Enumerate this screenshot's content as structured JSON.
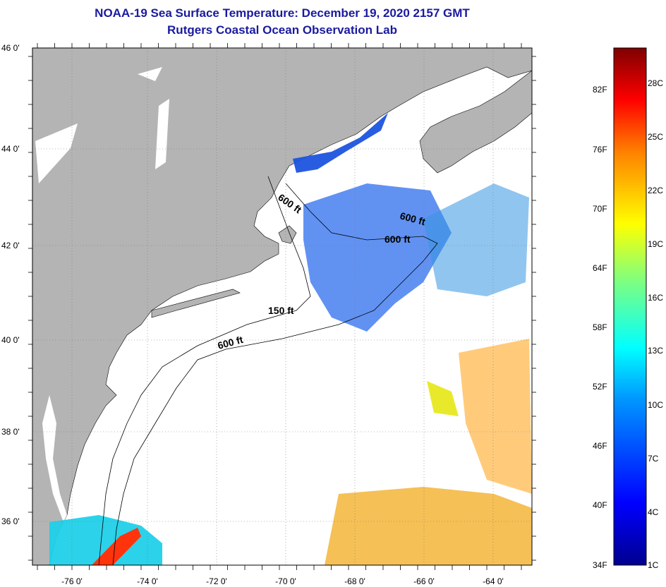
{
  "title": {
    "line1": "NOAA-19 Sea Surface Temperature:  December 19, 2020 2157 GMT",
    "line2": "Rutgers Coastal Ocean Observation Lab"
  },
  "axes": {
    "x_ticks": [
      "-76 0'",
      "-74 0'",
      "-72 0'",
      "-70 0'",
      "-68 0'",
      "-66 0'",
      "-64 0'"
    ],
    "y_ticks": [
      "46 0'",
      "44 0'",
      "42 0'",
      "40 0'",
      "38 0'",
      "36 0'"
    ]
  },
  "depth_contours": [
    {
      "label": "600 ft",
      "lon": -71.2,
      "lat": 42.7
    },
    {
      "label": "600 ft",
      "lon": -66.4,
      "lat": 42.4
    },
    {
      "label": "600 ft",
      "lon": -66.5,
      "lat": 42.1
    },
    {
      "label": "150 ft",
      "lon": -70.0,
      "lat": 40.6
    },
    {
      "label": "600 ft",
      "lon": -71.5,
      "lat": 39.9
    }
  ],
  "colorbar": {
    "fahrenheit": [
      "82F",
      "76F",
      "70F",
      "64F",
      "58F",
      "52F",
      "46F",
      "40F",
      "34F"
    ],
    "celsius": [
      "28C",
      "25C",
      "22C",
      "19C",
      "16C",
      "13C",
      "10C",
      "7C",
      "4C",
      "1C"
    ]
  },
  "colors": {
    "land": "#b4b4b4",
    "title": "#1a1aa0"
  }
}
